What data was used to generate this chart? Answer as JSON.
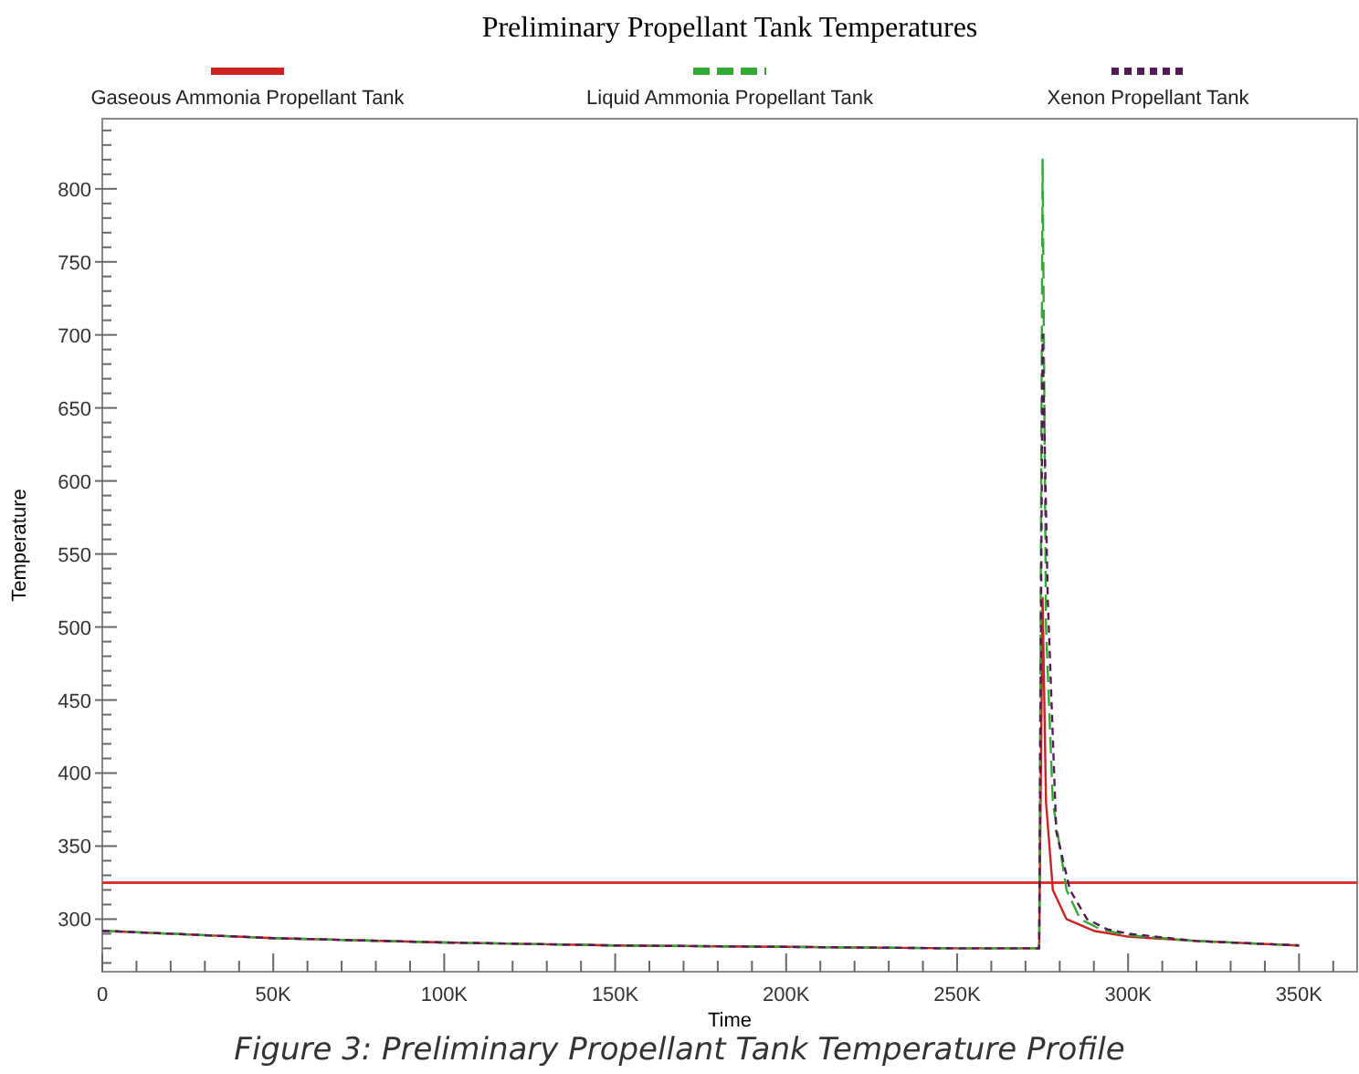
{
  "chart_data": {
    "type": "line",
    "title": "Preliminary Propellant Tank Temperatures",
    "xlabel": "Time",
    "ylabel": "Temperature",
    "annotations": [
      "Figure 3: Preliminary Propellant Tank Temperature Profile"
    ],
    "legend": "top",
    "grid": false,
    "marker": "none",
    "xlim": [
      0,
      367000
    ],
    "ylim": [
      264,
      848
    ],
    "xticks": [
      {
        "value": 0,
        "label": "0"
      },
      {
        "value": 10000,
        "label": null
      },
      {
        "value": 20000,
        "label": null
      },
      {
        "value": 30000,
        "label": null
      },
      {
        "value": 40000,
        "label": null
      },
      {
        "value": 50000,
        "label": "50K"
      },
      {
        "value": 60000,
        "label": null
      },
      {
        "value": 70000,
        "label": null
      },
      {
        "value": 80000,
        "label": null
      },
      {
        "value": 90000,
        "label": null
      },
      {
        "value": 100000,
        "label": "100K"
      },
      {
        "value": 110000,
        "label": null
      },
      {
        "value": 120000,
        "label": null
      },
      {
        "value": 130000,
        "label": null
      },
      {
        "value": 140000,
        "label": null
      },
      {
        "value": 150000,
        "label": "150K"
      },
      {
        "value": 160000,
        "label": null
      },
      {
        "value": 170000,
        "label": null
      },
      {
        "value": 180000,
        "label": null
      },
      {
        "value": 190000,
        "label": null
      },
      {
        "value": 200000,
        "label": "200K"
      },
      {
        "value": 210000,
        "label": null
      },
      {
        "value": 220000,
        "label": null
      },
      {
        "value": 230000,
        "label": null
      },
      {
        "value": 240000,
        "label": null
      },
      {
        "value": 250000,
        "label": "250K"
      },
      {
        "value": 260000,
        "label": null
      },
      {
        "value": 270000,
        "label": null
      },
      {
        "value": 280000,
        "label": null
      },
      {
        "value": 290000,
        "label": null
      },
      {
        "value": 300000,
        "label": "300K"
      },
      {
        "value": 310000,
        "label": null
      },
      {
        "value": 320000,
        "label": null
      },
      {
        "value": 330000,
        "label": null
      },
      {
        "value": 340000,
        "label": null
      },
      {
        "value": 350000,
        "label": "350K"
      },
      {
        "value": 360000,
        "label": null
      }
    ],
    "yticks": [
      {
        "value": 270,
        "label": null
      },
      {
        "value": 280,
        "label": null
      },
      {
        "value": 290,
        "label": null
      },
      300,
      {
        "value": 310,
        "label": null
      },
      {
        "value": 320,
        "label": null
      },
      {
        "value": 330,
        "label": null
      },
      {
        "value": 340,
        "label": null
      },
      350,
      {
        "value": 360,
        "label": null
      },
      {
        "value": 370,
        "label": null
      },
      {
        "value": 380,
        "label": null
      },
      {
        "value": 390,
        "label": null
      },
      400,
      {
        "value": 410,
        "label": null
      },
      {
        "value": 420,
        "label": null
      },
      {
        "value": 430,
        "label": null
      },
      {
        "value": 440,
        "label": null
      },
      450,
      {
        "value": 460,
        "label": null
      },
      {
        "value": 470,
        "label": null
      },
      {
        "value": 480,
        "label": null
      },
      {
        "value": 490,
        "label": null
      },
      500,
      {
        "value": 510,
        "label": null
      },
      {
        "value": 520,
        "label": null
      },
      {
        "value": 530,
        "label": null
      },
      {
        "value": 540,
        "label": null
      },
      550,
      {
        "value": 560,
        "label": null
      },
      {
        "value": 570,
        "label": null
      },
      {
        "value": 580,
        "label": null
      },
      {
        "value": 590,
        "label": null
      },
      600,
      {
        "value": 610,
        "label": null
      },
      {
        "value": 620,
        "label": null
      },
      {
        "value": 630,
        "label": null
      },
      {
        "value": 640,
        "label": null
      },
      650,
      {
        "value": 660,
        "label": null
      },
      {
        "value": 670,
        "label": null
      },
      {
        "value": 680,
        "label": null
      },
      {
        "value": 690,
        "label": null
      },
      700,
      {
        "value": 710,
        "label": null
      },
      {
        "value": 720,
        "label": null
      },
      {
        "value": 730,
        "label": null
      },
      {
        "value": 740,
        "label": null
      },
      750,
      {
        "value": 760,
        "label": null
      },
      {
        "value": 770,
        "label": null
      },
      {
        "value": 780,
        "label": null
      },
      {
        "value": 790,
        "label": null
      },
      800,
      {
        "value": 810,
        "label": null
      },
      {
        "value": 820,
        "label": null
      },
      {
        "value": 830,
        "label": null
      },
      {
        "value": 840,
        "label": null
      }
    ],
    "ref_lines": [
      {
        "axis": "y",
        "value": 325,
        "color": "#dd3333"
      }
    ],
    "series": [
      {
        "name": "Gaseous Ammonia Propellant Tank",
        "color": "#cc2222",
        "line_style": "solid",
        "x": [
          0,
          20000,
          50000,
          100000,
          150000,
          200000,
          250000,
          274000,
          275000,
          276000,
          278000,
          282000,
          290000,
          300000,
          320000,
          350000
        ],
        "values": [
          292,
          290,
          287,
          284,
          282,
          281,
          280,
          280,
          520,
          380,
          320,
          300,
          292,
          288,
          285,
          282
        ]
      },
      {
        "name": "Liquid Ammonia Propellant Tank",
        "color": "#33aa33",
        "line_style": "dashed",
        "x": [
          0,
          20000,
          50000,
          100000,
          150000,
          200000,
          250000,
          274000,
          275000,
          276000,
          278000,
          282000,
          286000,
          292000,
          300000,
          320000,
          350000
        ],
        "values": [
          292,
          290,
          287,
          284,
          282,
          281,
          280,
          280,
          820,
          500,
          380,
          320,
          300,
          293,
          289,
          285,
          282
        ]
      },
      {
        "name": "Xenon Propellant Tank",
        "color": "#551a55",
        "line_style": "dotted",
        "x": [
          0,
          20000,
          50000,
          100000,
          150000,
          200000,
          250000,
          274000,
          275000,
          276500,
          279000,
          283000,
          288000,
          294000,
          300000,
          320000,
          350000
        ],
        "values": [
          292,
          290,
          287,
          284,
          282,
          281,
          280,
          280,
          700,
          520,
          360,
          320,
          300,
          293,
          290,
          285,
          282
        ]
      }
    ]
  }
}
